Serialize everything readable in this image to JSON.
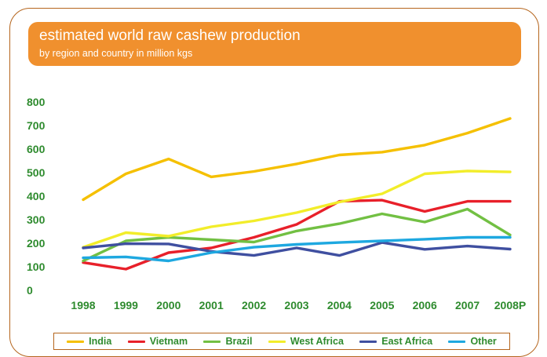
{
  "header": {
    "title": "estimated world raw cashew production",
    "subtitle": "by region and country in million kgs"
  },
  "chart_data": {
    "type": "line",
    "title": "estimated world raw cashew production",
    "subtitle": "by region and country in million kgs",
    "xlabel": "",
    "ylabel": "",
    "ylim": [
      0,
      800
    ],
    "yticks": [
      "800",
      "700",
      "600",
      "500",
      "400",
      "300",
      "200",
      "100",
      "0"
    ],
    "categories": [
      "1998",
      "1999",
      "2000",
      "2001",
      "2002",
      "2003",
      "2004",
      "2005",
      "2006",
      "2007",
      "2008P"
    ],
    "grid": false,
    "legend_position": "bottom",
    "series": [
      {
        "name": "India",
        "color": "#f5c000",
        "values": [
          385,
          495,
          558,
          482,
          505,
          537,
          575,
          587,
          617,
          668,
          730
        ]
      },
      {
        "name": "Vietnam",
        "color": "#e8202a",
        "values": [
          118,
          90,
          160,
          180,
          225,
          280,
          378,
          383,
          335,
          378,
          378
        ]
      },
      {
        "name": "Brazil",
        "color": "#72c043",
        "values": [
          125,
          210,
          225,
          215,
          205,
          252,
          283,
          325,
          290,
          345,
          235
        ]
      },
      {
        "name": "West Africa",
        "color": "#f2ed2a",
        "values": [
          183,
          245,
          230,
          270,
          295,
          330,
          375,
          410,
          495,
          507,
          503
        ]
      },
      {
        "name": "East Africa",
        "color": "#3f4fa0",
        "values": [
          180,
          198,
          197,
          165,
          148,
          180,
          148,
          203,
          174,
          188,
          175
        ]
      },
      {
        "name": "Other",
        "color": "#1ea8e0",
        "values": [
          138,
          142,
          125,
          160,
          183,
          195,
          203,
          210,
          217,
          225,
          225
        ]
      }
    ]
  }
}
